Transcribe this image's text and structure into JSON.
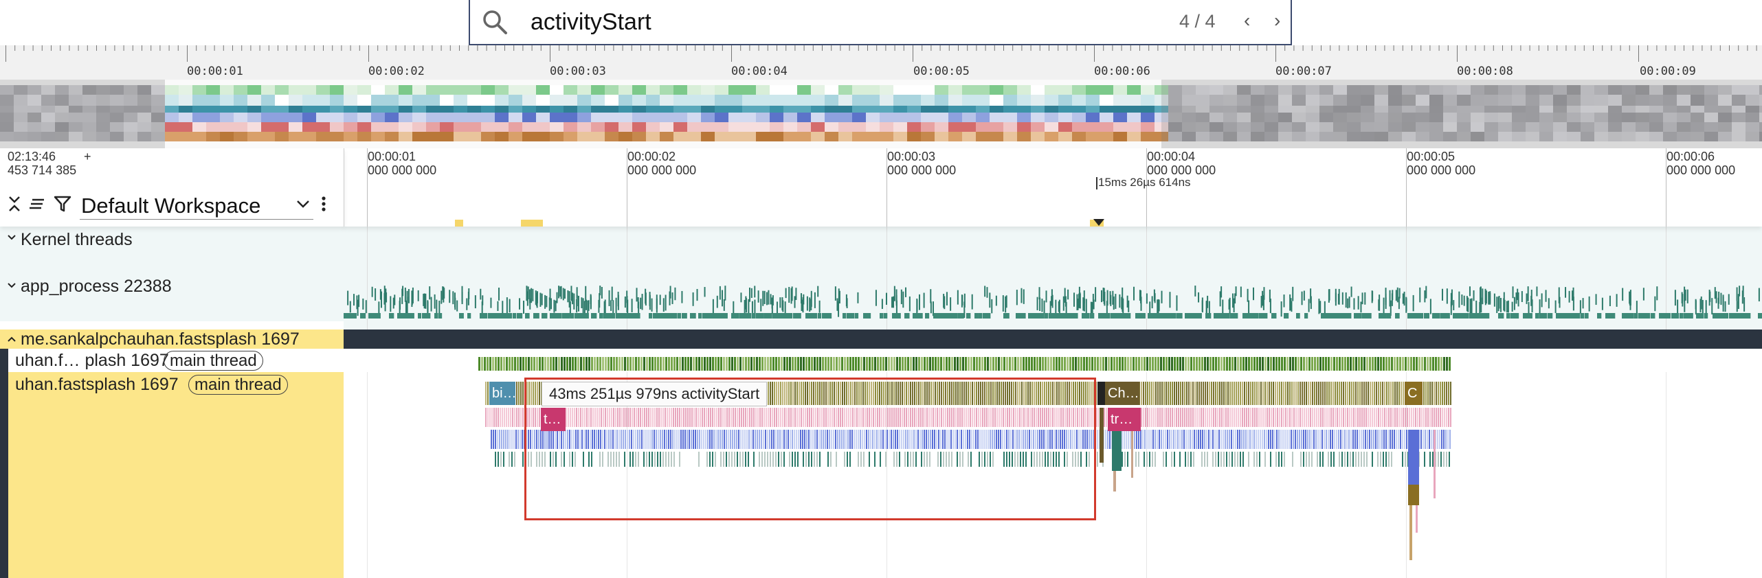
{
  "search": {
    "query": "activityStart",
    "match_count": "4 / 4",
    "prev_label": "‹",
    "next_label": "›",
    "icon": "search-icon"
  },
  "overview": {
    "ticks": [
      "00:00:01",
      "00:00:02",
      "00:00:03",
      "00:00:04",
      "00:00:05",
      "00:00:06",
      "00:00:07",
      "00:00:08",
      "00:00:09"
    ]
  },
  "timeline": {
    "start_time": "02:13:46",
    "start_ns": "453 714 385",
    "plus_label": "+",
    "ticks": [
      {
        "time": "00:00:01",
        "ns": "000 000 000"
      },
      {
        "time": "00:00:02",
        "ns": "000 000 000"
      },
      {
        "time": "00:00:03",
        "ns": "000 000 000"
      },
      {
        "time": "00:00:04",
        "ns": "000 000 000"
      },
      {
        "time": "00:00:05",
        "ns": "000 000 000"
      },
      {
        "time": "00:00:06",
        "ns": "000 000 000"
      }
    ],
    "marker_label": "15ms 26µs 614ns"
  },
  "workspace": {
    "name": "Default Workspace"
  },
  "tracks": {
    "kernel_threads": "Kernel threads",
    "app_process": "app_process 22388",
    "fastsplash_process": "me.sankalpchauhan.fastsplash 1697",
    "thread_short": "uhan.f… plash 1697",
    "thread_short_chip": "main thread",
    "thread_full": "uhan.fastsplash 1697",
    "thread_full_chip": "main thread"
  },
  "slices": {
    "bi": "bi…",
    "t": "t…",
    "ch": "Ch…",
    "tr": "tr…",
    "c": "C"
  },
  "tooltip": {
    "duration": "43ms 251µs 979ns",
    "name": "activityStart"
  },
  "colors": {
    "accent_header": "#fce68a",
    "dark_bar": "#2b3440",
    "teal": "#2d7a6a",
    "highlight": "#d23a2d"
  }
}
